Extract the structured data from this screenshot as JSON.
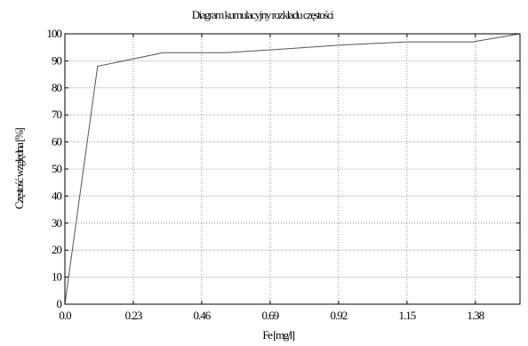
{
  "chart_data": {
    "type": "line",
    "title": "Diagram kumulacyjny rozkładu częstości",
    "xlabel": "Fe [mg/l]",
    "ylabel": "Częstość względna [%]",
    "xlim": [
      0.0,
      1.53
    ],
    "ylim": [
      0,
      100
    ],
    "grid": true,
    "x_ticks": [
      "0.0",
      "0.23",
      "0.46",
      "0.69",
      "0.92",
      "1.15",
      "1.38"
    ],
    "x_tick_values": [
      0.0,
      0.23,
      0.46,
      0.69,
      0.92,
      1.15,
      1.38
    ],
    "y_ticks": [
      "0",
      "10",
      "20",
      "30",
      "40",
      "50",
      "60",
      "70",
      "80",
      "90",
      "100"
    ],
    "y_tick_values": [
      0,
      10,
      20,
      30,
      40,
      50,
      60,
      70,
      80,
      90,
      100
    ],
    "series": [
      {
        "x": [
          0.0,
          0.11,
          0.33,
          0.54,
          0.75,
          0.95,
          1.15,
          1.37,
          1.53
        ],
        "y": [
          0,
          88,
          93,
          93,
          94.5,
          96,
          97,
          97,
          100
        ],
        "color": "#555555"
      }
    ]
  }
}
